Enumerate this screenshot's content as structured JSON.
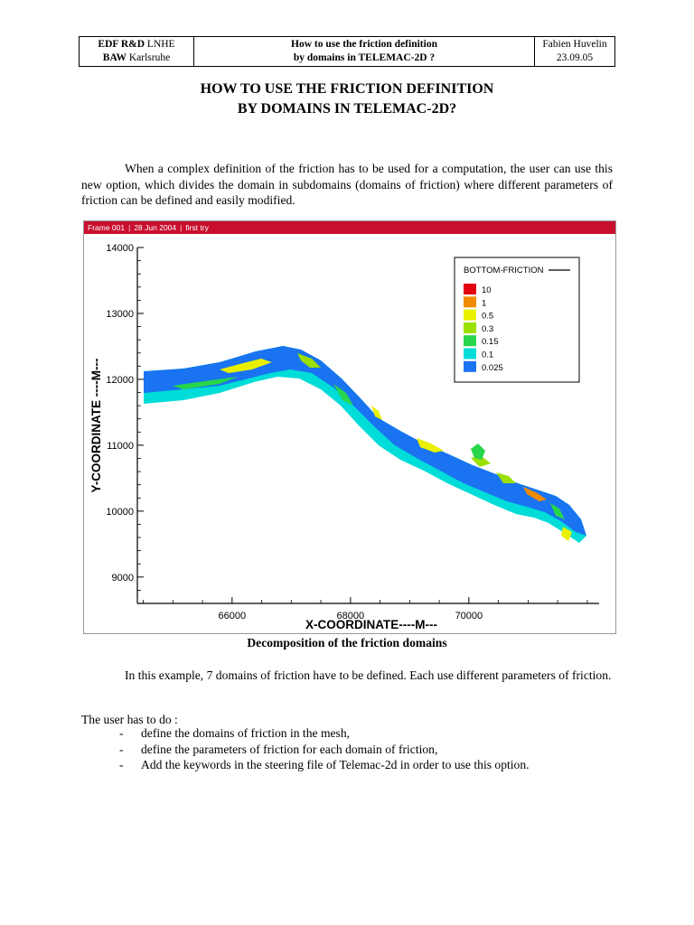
{
  "header": {
    "left_line1_bold": "EDF R&D",
    "left_line1_rest": " LNHE",
    "left_line2_bold": "BAW",
    "left_line2_rest": " Karlsruhe",
    "center_line1": "How to use the friction definition",
    "center_line2": "by domains in TELEMAC-2D ?",
    "right_line1": "Fabien Huvelin",
    "right_line2": "23.09.05"
  },
  "title": {
    "line1": "HOW TO USE THE FRICTION DEFINITION",
    "line2": "BY DOMAINS IN TELEMAC-2D?"
  },
  "intro_paragraph": "When a complex definition of the friction has to be used for a computation, the user can use this new option, which divides the domain in subdomains (domains of friction) where different parameters of friction can be defined and easily modified.",
  "figure": {
    "frame_label": "Frame 001",
    "frame_date": "28 Jun 2004",
    "frame_note": "first try",
    "caption": "Decomposition of the friction domains",
    "colors": {
      "c10": "#e3000f",
      "c1": "#f28a00",
      "c05": "#e8f000",
      "c03": "#9be000",
      "c015": "#27d64a",
      "c01": "#00dcd8",
      "c0025": "#1a73f0"
    }
  },
  "chart_data": {
    "type": "heatmap",
    "title": "",
    "xlabel": "X-COORDINATE----M---",
    "ylabel": "Y-COORDINATE ----M---",
    "xlim": [
      64400,
      72200
    ],
    "ylim": [
      8600,
      14000
    ],
    "x_ticks": [
      66000,
      68000,
      70000
    ],
    "y_ticks": [
      9000,
      10000,
      11000,
      12000,
      13000,
      14000
    ],
    "legend_title": "BOTTOM-FRICTION",
    "legend": [
      {
        "label": "10",
        "color": "#e3000f"
      },
      {
        "label": "1",
        "color": "#f28a00"
      },
      {
        "label": "0.5",
        "color": "#e8f000"
      },
      {
        "label": "0.3",
        "color": "#9be000"
      },
      {
        "label": "0.15",
        "color": "#27d64a"
      },
      {
        "label": "0.1",
        "color": "#00dcd8"
      },
      {
        "label": "0.025",
        "color": "#1a73f0"
      }
    ]
  },
  "para2": "In this example, 7 domains of friction have to be defined. Each use different parameters of friction.",
  "list_intro": "The user has to do :",
  "list": {
    "dash": "-",
    "items": [
      "define the domains of friction in the mesh,",
      "define the parameters of friction for each domain of friction,",
      "Add the keywords in the steering file of Telemac-2d in order to use this option."
    ]
  }
}
